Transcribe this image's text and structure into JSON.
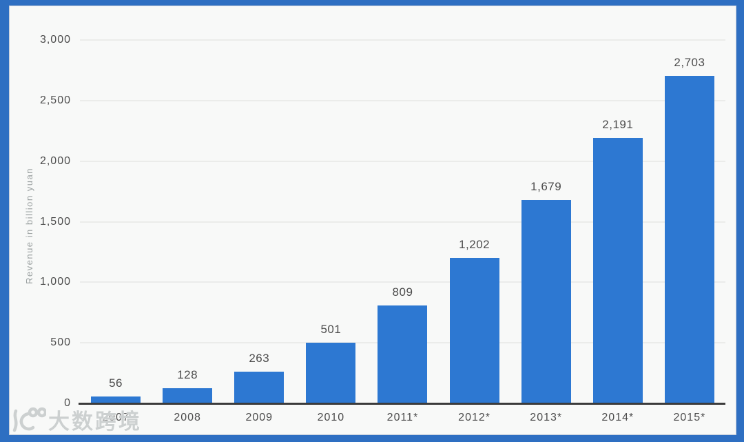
{
  "chart_data": {
    "type": "bar",
    "title": "",
    "xlabel": "",
    "ylabel": "Revenue in billion yuan",
    "categories": [
      "2007",
      "2008",
      "2009",
      "2010",
      "2011*",
      "2012*",
      "2013*",
      "2014*",
      "2015*"
    ],
    "values": [
      56,
      128,
      263,
      501,
      809,
      1202,
      1679,
      2191,
      2703
    ],
    "value_labels": [
      "56",
      "128",
      "263",
      "501",
      "809",
      "1,202",
      "1,679",
      "2,191",
      "2,703"
    ],
    "ylim": [
      0,
      3000
    ],
    "yticks": [
      0,
      500,
      1000,
      1500,
      2000,
      2500,
      3000
    ],
    "ytick_labels": [
      "0",
      "500",
      "1,000",
      "1,500",
      "2,000",
      "2,500",
      "3,000"
    ],
    "grid": true,
    "legend": "none",
    "bar_color": "#2d78d2"
  },
  "colors": {
    "frame": "#2e6fc2",
    "background": "#f8f9f8",
    "gridline": "#ebecea",
    "axis_line": "#3b3b3b",
    "label_text": "#4c4c4c",
    "ylabel_text": "#9aa0a0",
    "watermark_text": "#ccd0d0"
  },
  "watermark": {
    "icon": "10100-logo",
    "text": "大数跨境"
  }
}
